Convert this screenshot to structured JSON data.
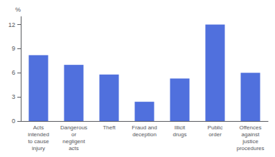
{
  "chart_data": {
    "type": "bar",
    "categories": [
      "Acts\nintended\nto cause\ninjury",
      "Dangerous\nor\nnegligent\nacts",
      "Theft",
      "Fraud and\ndeception",
      "Illicit\ndrugs",
      "Public\norder",
      "Offences\nagainst\njustice\nprocedures"
    ],
    "values": [
      8.2,
      7.0,
      5.8,
      2.4,
      5.3,
      12.0,
      6.0
    ],
    "ylabel": "%",
    "ylim": [
      0,
      13
    ],
    "yticks": [
      0,
      3,
      6,
      9,
      12
    ],
    "grid": false
  }
}
